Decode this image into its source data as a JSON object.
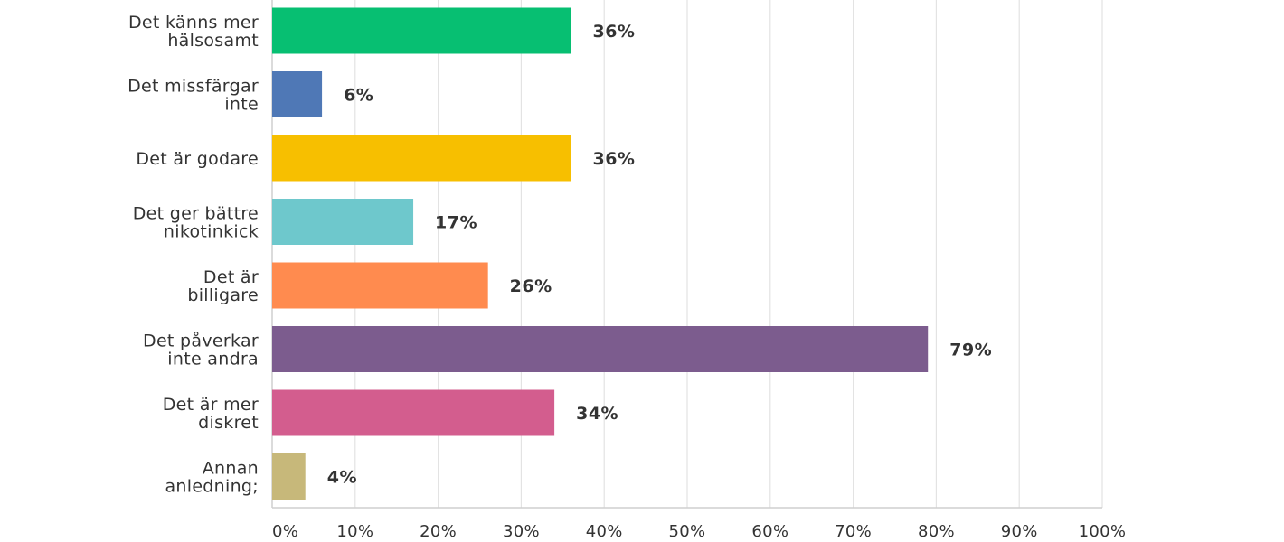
{
  "chart_data": {
    "type": "bar",
    "orientation": "horizontal",
    "categories": [
      [
        "Det känns mer",
        "hälsosamt"
      ],
      [
        "Det missfärgar",
        "inte"
      ],
      [
        "Det är godare"
      ],
      [
        "Det ger bättre",
        "nikotinkick"
      ],
      [
        "Det är",
        "billigare"
      ],
      [
        "Det påverkar",
        "inte andra"
      ],
      [
        "Det är mer",
        "diskret"
      ],
      [
        "Annan",
        "anledning;"
      ]
    ],
    "values": [
      36,
      6,
      36,
      17,
      26,
      79,
      34,
      4
    ],
    "value_labels": [
      "36%",
      "6%",
      "36%",
      "17%",
      "26%",
      "79%",
      "34%",
      "4%"
    ],
    "colors": [
      "#07bf72",
      "#4f78b6",
      "#f7bf00",
      "#6ec8cc",
      "#ff8b4f",
      "#7c5c8e",
      "#d35d8e",
      "#c7b87a"
    ],
    "xlim": [
      0,
      100
    ],
    "ticks": [
      0,
      10,
      20,
      30,
      40,
      50,
      60,
      70,
      80,
      90,
      100
    ],
    "tick_labels": [
      "0%",
      "10%",
      "20%",
      "30%",
      "40%",
      "50%",
      "60%",
      "70%",
      "80%",
      "90%",
      "100%"
    ],
    "grid": true,
    "legend": "none",
    "title": "",
    "xlabel": "",
    "ylabel": ""
  },
  "colors": {
    "grid": "#e3e3e3",
    "axis": "#cfcfcf",
    "text": "#333333"
  }
}
